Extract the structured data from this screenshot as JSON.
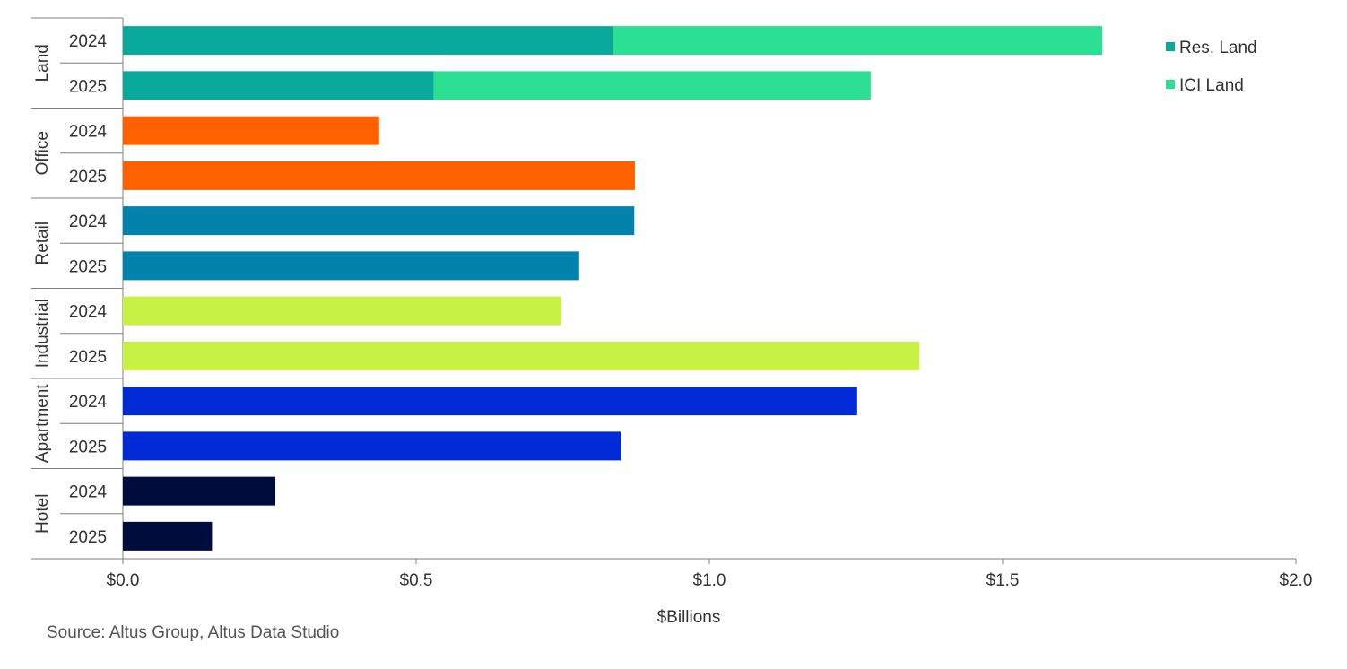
{
  "chart_data": {
    "type": "bar",
    "orientation": "horizontal",
    "stacked": true,
    "groups": [
      {
        "name": "Land",
        "rows": [
          {
            "year": "2024",
            "segments": [
              {
                "series": "Res. Land",
                "value": 0.835
              },
              {
                "series": "ICI Land",
                "value": 0.835
              }
            ]
          },
          {
            "year": "2025",
            "segments": [
              {
                "series": "Res. Land",
                "value": 0.53
              },
              {
                "series": "ICI Land",
                "value": 0.745
              }
            ]
          }
        ]
      },
      {
        "name": "Office",
        "color": "#ff6100",
        "rows": [
          {
            "year": "2024",
            "segments": [
              {
                "value": 0.437
              }
            ]
          },
          {
            "year": "2025",
            "segments": [
              {
                "value": 0.873
              }
            ]
          }
        ]
      },
      {
        "name": "Retail",
        "color": "#0383ac",
        "rows": [
          {
            "year": "2024",
            "segments": [
              {
                "value": 0.872
              }
            ]
          },
          {
            "year": "2025",
            "segments": [
              {
                "value": 0.778
              }
            ]
          }
        ]
      },
      {
        "name": "Industrial",
        "color": "#c8f243",
        "rows": [
          {
            "year": "2024",
            "segments": [
              {
                "value": 0.747
              }
            ]
          },
          {
            "year": "2025",
            "segments": [
              {
                "value": 1.358
              }
            ]
          }
        ]
      },
      {
        "name": "Apartment",
        "color": "#002ad6",
        "rows": [
          {
            "year": "2024",
            "segments": [
              {
                "value": 1.252
              }
            ]
          },
          {
            "year": "2025",
            "segments": [
              {
                "value": 0.849
              }
            ]
          }
        ]
      },
      {
        "name": "Hotel",
        "color": "#000d3c",
        "rows": [
          {
            "year": "2024",
            "segments": [
              {
                "value": 0.26
              }
            ]
          },
          {
            "year": "2025",
            "segments": [
              {
                "value": 0.152
              }
            ]
          }
        ]
      }
    ],
    "series": [
      {
        "name": "Res. Land",
        "color": "#09a99c"
      },
      {
        "name": "ICI Land",
        "color": "#2ce093"
      }
    ],
    "x_ticks": [
      {
        "value": 0.0,
        "label": "$0.0"
      },
      {
        "value": 0.5,
        "label": "$0.5"
      },
      {
        "value": 1.0,
        "label": "$1.0"
      },
      {
        "value": 1.5,
        "label": "$1.5"
      },
      {
        "value": 2.0,
        "label": "$2.0"
      }
    ],
    "xlim": [
      0,
      2
    ],
    "xlabel": "$Billions",
    "grid": false,
    "legend_position": "top-right"
  },
  "source": "Source:  Altus Group, Altus Data Studio"
}
